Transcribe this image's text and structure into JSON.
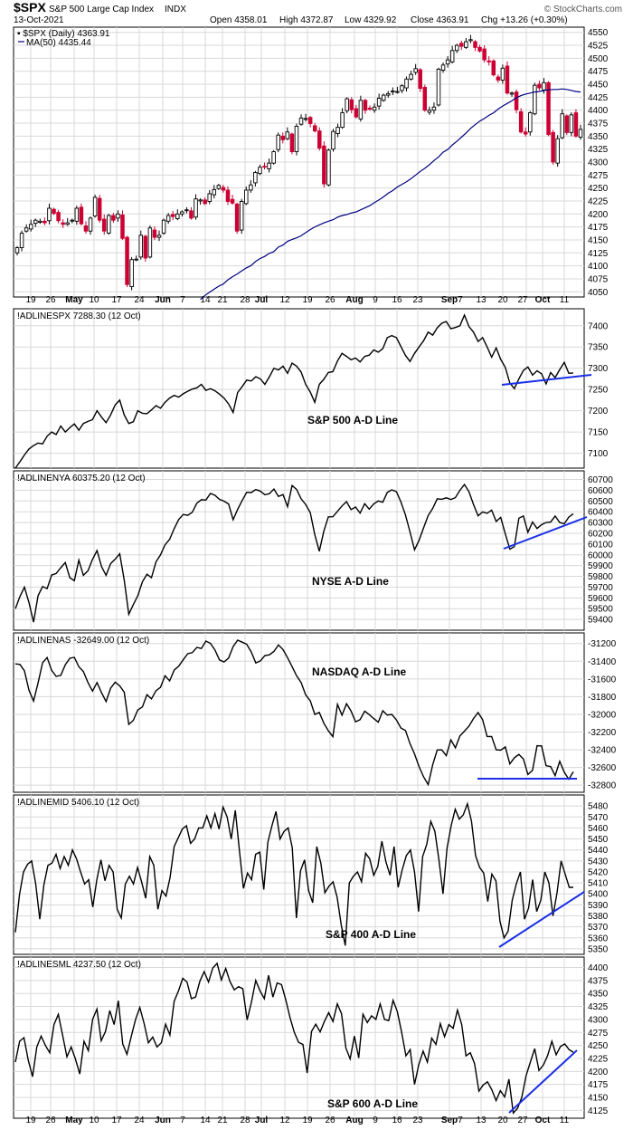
{
  "header": {
    "symbol": "$SPX",
    "name": "S&P 500 Large Cap Index",
    "exchange": "INDX",
    "brand": "© StockCharts.com",
    "date": "13-Oct-2021",
    "quote": {
      "open": "Open 4358.01",
      "high": "High 4372.87",
      "low": "Low 4329.92",
      "close": "Close 4363.91",
      "chg": "Chg +13.26 (+0.30%)"
    }
  },
  "colors": {
    "up_candle": "#000000",
    "down_candle": "#cc0033",
    "ma_line": "#000080",
    "trendline": "#1a2fe6",
    "ad_line": "#000000",
    "grid": "#d8d8d8"
  },
  "x_axis_labels": [
    "19",
    "26",
    "May",
    "10",
    "17",
    "24",
    "Jun",
    "7",
    "14",
    "21",
    "28",
    "Jul",
    "12",
    "19",
    "26",
    "Aug",
    "9",
    "16",
    "23",
    "Sep",
    "7",
    "13",
    "20",
    "27",
    "Oct",
    "11"
  ],
  "chart_data": [
    {
      "type": "candlestick",
      "title": "$SPX S&P 500 Large Cap Index INDX",
      "legend": [
        "$SPX (Daily) 4363.91",
        "MA(50) 4435.44"
      ],
      "ylim": [
        4040,
        4560
      ],
      "yticks": [
        4050,
        4075,
        4100,
        4125,
        4150,
        4175,
        4200,
        4225,
        4250,
        4275,
        4300,
        4325,
        4350,
        4375,
        4400,
        4425,
        4450,
        4475,
        4500,
        4525,
        4550
      ],
      "close": [
        4135,
        4163,
        4173,
        4180,
        4188,
        4186,
        4183,
        4211,
        4201,
        4187,
        4180,
        4183,
        4188,
        4211,
        4181,
        4167,
        4192,
        4232,
        4188,
        4167,
        4197,
        4188,
        4200,
        4153,
        4064,
        4112,
        4113,
        4159,
        4115,
        4173,
        4155,
        4159,
        4188,
        4197,
        4195,
        4200,
        4204,
        4208,
        4192,
        4229,
        4227,
        4220,
        4239,
        4247,
        4255,
        4246,
        4224,
        4221,
        4167,
        4224,
        4246,
        4256,
        4280,
        4290,
        4291,
        4298,
        4320,
        4352,
        4343,
        4358,
        4320,
        4369,
        4385,
        4384,
        4374,
        4360,
        4327,
        4258,
        4323,
        4359,
        4367,
        4395,
        4422,
        4401,
        4387,
        4419,
        4400,
        4402,
        4406,
        4423,
        4429,
        4432,
        4437,
        4436,
        4447,
        4460,
        4469,
        4480,
        4442,
        4400,
        4400,
        4406,
        4479,
        4487,
        4497,
        4515,
        4525,
        4523,
        4532,
        4536,
        4521,
        4514,
        4497,
        4493,
        4468,
        4458,
        4481,
        4433,
        4433,
        4401,
        4358,
        4354,
        4395,
        4448,
        4443,
        4453,
        4353,
        4300,
        4345,
        4393,
        4357,
        4391,
        4350,
        4363
      ],
      "ma50": [
        4035,
        4043,
        4049,
        4055,
        4061,
        4065,
        4073,
        4079,
        4084,
        4090,
        4096,
        4100,
        4108,
        4114,
        4118,
        4124,
        4127,
        4136,
        4140,
        4147,
        4151,
        4154,
        4158,
        4164,
        4170,
        4175,
        4179,
        4183,
        4186,
        4189,
        4194,
        4197,
        4199,
        4202,
        4204,
        4208,
        4212,
        4216,
        4222,
        4227,
        4233,
        4240,
        4245,
        4252,
        4257,
        4262,
        4268,
        4275,
        4282,
        4288,
        4295,
        4303,
        4310,
        4319,
        4324,
        4333,
        4340,
        4348,
        4356,
        4365,
        4372,
        4379,
        4384,
        4390,
        4395,
        4402,
        4408,
        4413,
        4418,
        4424,
        4428,
        4431,
        4433,
        4435,
        4436,
        4438,
        4439,
        4440,
        4440,
        4441,
        4440,
        4438,
        4436,
        4435
      ],
      "ma_start_index": 40
    },
    {
      "type": "line",
      "name": "!ADLINESPX 7288.30 (12 Oct)",
      "annotation": "S&P 500 A-D Line",
      "ylim": [
        7065,
        7440
      ],
      "yticks": [
        7100,
        7150,
        7200,
        7250,
        7300,
        7350,
        7400
      ],
      "values": [
        7065,
        7080,
        7096,
        7110,
        7118,
        7124,
        7122,
        7140,
        7150,
        7144,
        7164,
        7150,
        7160,
        7169,
        7154,
        7170,
        7175,
        7179,
        7200,
        7185,
        7172,
        7190,
        7214,
        7225,
        7190,
        7170,
        7174,
        7200,
        7194,
        7193,
        7202,
        7212,
        7206,
        7220,
        7230,
        7236,
        7232,
        7240,
        7246,
        7251,
        7254,
        7262,
        7248,
        7252,
        7247,
        7239,
        7230,
        7216,
        7196,
        7243,
        7257,
        7272,
        7270,
        7280,
        7275,
        7262,
        7280,
        7300,
        7296,
        7305,
        7288,
        7312,
        7305,
        7291,
        7262,
        7244,
        7220,
        7262,
        7274,
        7290,
        7292,
        7317,
        7335,
        7328,
        7320,
        7324,
        7315,
        7328,
        7331,
        7343,
        7338,
        7346,
        7372,
        7377,
        7372,
        7351,
        7330,
        7316,
        7335,
        7350,
        7365,
        7385,
        7378,
        7395,
        7406,
        7410,
        7393,
        7396,
        7400,
        7425,
        7398,
        7385,
        7363,
        7372,
        7350,
        7326,
        7348,
        7321,
        7302,
        7265,
        7252,
        7275,
        7295,
        7303,
        7284,
        7294,
        7287,
        7263,
        7290,
        7278,
        7297,
        7314,
        7288,
        7289
      ]
    },
    {
      "type": "line",
      "name": "!ADLINENYA 60375.20 (12 Oct)",
      "annotation": "NYSE A-D Line",
      "ylim": [
        59300,
        60780
      ],
      "yticks": [
        59400,
        59500,
        59600,
        59700,
        59800,
        59900,
        60000,
        60100,
        60200,
        60300,
        60400,
        60500,
        60600,
        60700
      ],
      "values": [
        59500,
        59612,
        59700,
        59558,
        59375,
        59620,
        59705,
        59686,
        59812,
        59826,
        59880,
        59928,
        59788,
        59760,
        59950,
        59810,
        59852,
        59958,
        60040,
        59890,
        59810,
        59918,
        59960,
        60010,
        59764,
        59448,
        59537,
        59620,
        59750,
        59820,
        59788,
        59935,
        60000,
        60093,
        60144,
        60243,
        60328,
        60375,
        60367,
        60395,
        60480,
        60512,
        60508,
        60570,
        60553,
        60515,
        60498,
        60472,
        60326,
        60422,
        60504,
        60581,
        60578,
        60606,
        60592,
        60558,
        60568,
        60611,
        60542,
        60560,
        60447,
        60644,
        60608,
        60520,
        60468,
        60392,
        60188,
        60033,
        60219,
        60353,
        60354,
        60404,
        60454,
        60494,
        60420,
        60444,
        60387,
        60475,
        60424,
        60473,
        60500,
        60488,
        60580,
        60603,
        60587,
        60490,
        60370,
        60212,
        60047,
        60134,
        60253,
        60365,
        60431,
        60520,
        60516,
        60529,
        60514,
        60531,
        60599,
        60653,
        60587,
        60468,
        60362,
        60398,
        60386,
        60415,
        60310,
        60348,
        60194,
        60053,
        60076,
        60340,
        60360,
        60209,
        60305,
        60244,
        60280,
        60301,
        60304,
        60360,
        60300,
        60288,
        60350,
        60381
      ]
    },
    {
      "type": "line",
      "name": "!ADLINENAS -32649.00 (12 Oct)",
      "annotation": "NASDAQ A-D Line",
      "ylim": [
        -32880,
        -31080
      ],
      "yticks": [
        -31200,
        -31400,
        -31600,
        -31800,
        -32000,
        -32200,
        -32400,
        -32600,
        -32800
      ],
      "values": [
        -31430,
        -31436,
        -31508,
        -31725,
        -31850,
        -31645,
        -31416,
        -31358,
        -31502,
        -31571,
        -31560,
        -31440,
        -31366,
        -31356,
        -31462,
        -31516,
        -31640,
        -31738,
        -31640,
        -31756,
        -31855,
        -31705,
        -31636,
        -31678,
        -31750,
        -32113,
        -32068,
        -31950,
        -31916,
        -31778,
        -31826,
        -31733,
        -31694,
        -31564,
        -31622,
        -31500,
        -31456,
        -31384,
        -31315,
        -31303,
        -31244,
        -31256,
        -31172,
        -31198,
        -31272,
        -31385,
        -31408,
        -31364,
        -31234,
        -31162,
        -31184,
        -31208,
        -31295,
        -31420,
        -31396,
        -31336,
        -31328,
        -31290,
        -31216,
        -31268,
        -31360,
        -31460,
        -31565,
        -31640,
        -31780,
        -31846,
        -32000,
        -31978,
        -32100,
        -32186,
        -32252,
        -31887,
        -32010,
        -31880,
        -31962,
        -32084,
        -32060,
        -31964,
        -32002,
        -32047,
        -32088,
        -31960,
        -32008,
        -32000,
        -32063,
        -32155,
        -32181,
        -32331,
        -32446,
        -32590,
        -32707,
        -32793,
        -32570,
        -32402,
        -32400,
        -32467,
        -32288,
        -32378,
        -32244,
        -32190,
        -32133,
        -32048,
        -31980,
        -32060,
        -32250,
        -32250,
        -32400,
        -32404,
        -32368,
        -32560,
        -32490,
        -32452,
        -32504,
        -32680,
        -32632,
        -32354,
        -32356,
        -32580,
        -32590,
        -32692,
        -32530,
        -32654,
        -32733,
        -32649
      ]
    },
    {
      "type": "line",
      "name": "!ADLINEMID 5406.10 (12 Oct)",
      "annotation": "S&P 400 A-D Line",
      "ylim": [
        5345,
        5490
      ],
      "yticks": [
        5350,
        5360,
        5370,
        5380,
        5390,
        5400,
        5410,
        5420,
        5430,
        5440,
        5450,
        5460,
        5470,
        5480
      ],
      "values": [
        5365,
        5399,
        5420,
        5427,
        5430,
        5409,
        5377,
        5408,
        5426,
        5428,
        5436,
        5423,
        5434,
        5426,
        5440,
        5432,
        5420,
        5409,
        5413,
        5388,
        5413,
        5431,
        5412,
        5426,
        5420,
        5386,
        5378,
        5409,
        5416,
        5409,
        5424,
        5411,
        5396,
        5434,
        5426,
        5386,
        5403,
        5398,
        5415,
        5443,
        5451,
        5459,
        5462,
        5446,
        5450,
        5460,
        5460,
        5471,
        5460,
        5473,
        5459,
        5479,
        5470,
        5450,
        5476,
        5440,
        5405,
        5419,
        5413,
        5436,
        5438,
        5404,
        5447,
        5462,
        5475,
        5450,
        5457,
        5460,
        5442,
        5378,
        5421,
        5431,
        5403,
        5392,
        5443,
        5428,
        5401,
        5407,
        5411,
        5397,
        5372,
        5353,
        5410,
        5416,
        5420,
        5411,
        5437,
        5432,
        5417,
        5425,
        5448,
        5429,
        5417,
        5443,
        5406,
        5422,
        5435,
        5440,
        5420,
        5384,
        5434,
        5445,
        5466,
        5457,
        5431,
        5400,
        5442,
        5462,
        5477,
        5468,
        5472,
        5482,
        5466,
        5435,
        5424,
        5419,
        5393,
        5418,
        5412,
        5375,
        5360,
        5366,
        5394,
        5409,
        5420,
        5377,
        5387,
        5413,
        5384,
        5394,
        5420,
        5410,
        5380,
        5401,
        5430,
        5418,
        5406,
        5406
      ]
    },
    {
      "type": "line",
      "name": "!ADLINESML 4237.50 (12 Oct)",
      "annotation": "S&P 600 A-D Line",
      "ylim": [
        4110,
        4420
      ],
      "yticks": [
        4125,
        4150,
        4175,
        4200,
        4225,
        4250,
        4275,
        4300,
        4325,
        4350,
        4375,
        4400
      ],
      "values": [
        4218,
        4258,
        4265,
        4222,
        4190,
        4247,
        4268,
        4250,
        4236,
        4290,
        4310,
        4270,
        4228,
        4247,
        4224,
        4195,
        4258,
        4240,
        4300,
        4320,
        4259,
        4277,
        4317,
        4290,
        4336,
        4253,
        4233,
        4267,
        4300,
        4323,
        4292,
        4255,
        4266,
        4247,
        4255,
        4291,
        4270,
        4335,
        4355,
        4379,
        4372,
        4340,
        4343,
        4374,
        4392,
        4372,
        4399,
        4408,
        4376,
        4398,
        4373,
        4357,
        4363,
        4359,
        4299,
        4333,
        4375,
        4355,
        4340,
        4385,
        4343,
        4370,
        4367,
        4338,
        4303,
        4275,
        4256,
        4252,
        4197,
        4277,
        4291,
        4276,
        4296,
        4313,
        4296,
        4330,
        4311,
        4245,
        4224,
        4268,
        4226,
        4310,
        4294,
        4307,
        4300,
        4330,
        4300,
        4298,
        4337,
        4315,
        4275,
        4230,
        4242,
        4175,
        4213,
        4239,
        4218,
        4264,
        4252,
        4292,
        4267,
        4290,
        4283,
        4318,
        4290,
        4230,
        4236,
        4215,
        4162,
        4174,
        4180,
        4165,
        4144,
        4163,
        4151,
        4185,
        4120,
        4129,
        4150,
        4192,
        4218,
        4244,
        4202,
        4212,
        4230,
        4258,
        4232,
        4248,
        4253,
        4242,
        4237
      ]
    }
  ]
}
